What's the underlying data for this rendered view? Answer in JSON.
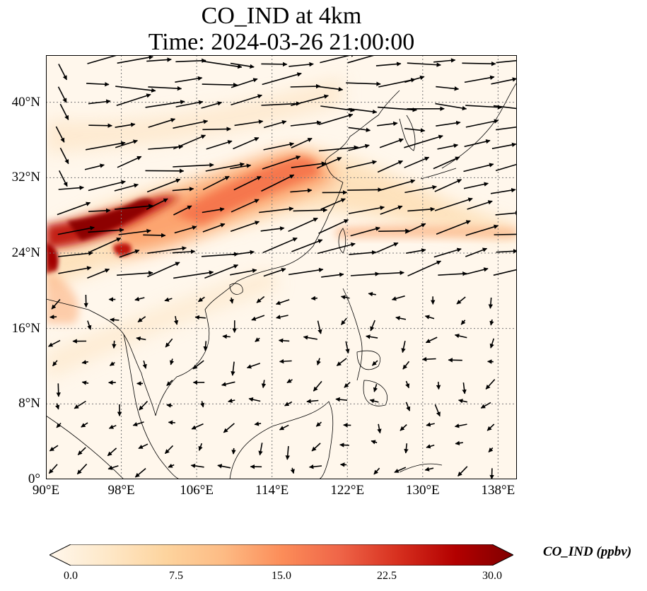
{
  "title": {
    "line1": "CO_IND at 4km",
    "line2": "Time: 2024-03-26 21:00:00"
  },
  "map": {
    "lon_range": [
      90,
      140
    ],
    "lat_range": [
      0,
      45
    ],
    "x_ticks": [
      "90°E",
      "98°E",
      "106°E",
      "114°E",
      "122°E",
      "130°E",
      "138°E"
    ],
    "y_ticks": [
      "0°",
      "8°N",
      "16°N",
      "24°N",
      "32°N",
      "40°N"
    ],
    "gridlines": "dotted"
  },
  "colorbar": {
    "label": "CO_IND (ppbv)",
    "ticks": [
      "0.0",
      "7.5",
      "15.0",
      "22.5",
      "30.0"
    ],
    "range": [
      0,
      30
    ],
    "colormap": "OrRd",
    "extend": "both",
    "colors": [
      "#fff7ec",
      "#fee8c8",
      "#fdd49e",
      "#fdbb84",
      "#fc8d59",
      "#ef6548",
      "#d7301f",
      "#b30000",
      "#7f0000"
    ]
  }
}
